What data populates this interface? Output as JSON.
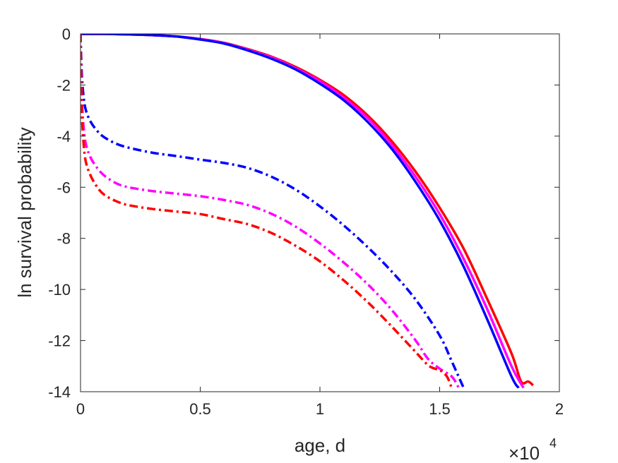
{
  "chart_data": {
    "type": "line",
    "xlabel": "age, d",
    "ylabel": "ln survival probability",
    "x_multiplier": {
      "base": "×10",
      "exponent": "4"
    },
    "xlim": [
      0,
      2
    ],
    "ylim": [
      -14,
      0
    ],
    "xticks": [
      "0",
      "0.5",
      "1",
      "1.5",
      "2"
    ],
    "yticks": [
      "0",
      "-2",
      "-4",
      "-6",
      "-8",
      "-10",
      "-12",
      "-14"
    ],
    "grid": false,
    "series": [
      {
        "style": "solid",
        "color": "#ff0000",
        "x": [
          0,
          0.1,
          0.2,
          0.3,
          0.4,
          0.5,
          0.6,
          0.7,
          0.8,
          0.9,
          1.0,
          1.1,
          1.2,
          1.3,
          1.4,
          1.5,
          1.6,
          1.7,
          1.8,
          1.84,
          1.87,
          1.89
        ],
        "y": [
          0,
          0,
          -0.02,
          -0.05,
          -0.1,
          -0.2,
          -0.35,
          -0.6,
          -0.9,
          -1.3,
          -1.8,
          -2.4,
          -3.2,
          -4.2,
          -5.4,
          -6.8,
          -8.4,
          -10.4,
          -12.5,
          -13.6,
          -13.6,
          -13.75
        ]
      },
      {
        "style": "solid",
        "color": "#ff00ff",
        "x": [
          0,
          0.1,
          0.2,
          0.3,
          0.4,
          0.5,
          0.6,
          0.7,
          0.8,
          0.9,
          1.0,
          1.1,
          1.2,
          1.3,
          1.4,
          1.5,
          1.6,
          1.7,
          1.8,
          1.85
        ],
        "y": [
          0,
          0,
          -0.02,
          -0.05,
          -0.1,
          -0.2,
          -0.36,
          -0.62,
          -0.93,
          -1.35,
          -1.85,
          -2.5,
          -3.3,
          -4.35,
          -5.6,
          -7.05,
          -8.8,
          -10.8,
          -13.0,
          -13.85
        ]
      },
      {
        "style": "solid",
        "color": "#0000ff",
        "x": [
          0,
          0.1,
          0.2,
          0.3,
          0.4,
          0.5,
          0.6,
          0.7,
          0.8,
          0.9,
          1.0,
          1.1,
          1.2,
          1.3,
          1.4,
          1.5,
          1.6,
          1.7,
          1.8,
          1.83
        ],
        "y": [
          0,
          0,
          -0.02,
          -0.05,
          -0.1,
          -0.22,
          -0.38,
          -0.65,
          -0.98,
          -1.4,
          -1.95,
          -2.6,
          -3.45,
          -4.5,
          -5.8,
          -7.3,
          -9.1,
          -11.2,
          -13.4,
          -13.85
        ]
      },
      {
        "style": "dashdot",
        "color": "#0000ff",
        "x": [
          0,
          0.005,
          0.01,
          0.02,
          0.04,
          0.07,
          0.1,
          0.15,
          0.2,
          0.3,
          0.4,
          0.5,
          0.6,
          0.7,
          0.8,
          0.9,
          1.0,
          1.1,
          1.2,
          1.3,
          1.4,
          1.5,
          1.55,
          1.6
        ],
        "y": [
          0,
          -1.5,
          -2.2,
          -2.9,
          -3.4,
          -3.8,
          -4.05,
          -4.3,
          -4.45,
          -4.65,
          -4.78,
          -4.92,
          -5.05,
          -5.25,
          -5.6,
          -6.1,
          -6.75,
          -7.5,
          -8.35,
          -9.3,
          -10.4,
          -11.8,
          -12.8,
          -13.85
        ]
      },
      {
        "style": "dashdot",
        "color": "#ff00ff",
        "x": [
          0,
          0.005,
          0.01,
          0.02,
          0.04,
          0.07,
          0.1,
          0.15,
          0.2,
          0.3,
          0.4,
          0.5,
          0.6,
          0.7,
          0.8,
          0.9,
          1.0,
          1.1,
          1.2,
          1.3,
          1.4,
          1.45,
          1.5,
          1.55,
          1.58
        ],
        "y": [
          0,
          -2.3,
          -3.3,
          -4.2,
          -4.8,
          -5.25,
          -5.55,
          -5.85,
          -6.0,
          -6.15,
          -6.25,
          -6.35,
          -6.5,
          -6.7,
          -7.05,
          -7.55,
          -8.2,
          -8.95,
          -9.8,
          -10.8,
          -12.0,
          -12.7,
          -13.1,
          -13.4,
          -13.85
        ]
      },
      {
        "style": "dashdot",
        "color": "#ff0000",
        "x": [
          0,
          0.005,
          0.01,
          0.02,
          0.04,
          0.07,
          0.1,
          0.15,
          0.2,
          0.3,
          0.4,
          0.5,
          0.6,
          0.7,
          0.8,
          0.9,
          1.0,
          1.1,
          1.2,
          1.3,
          1.4,
          1.45,
          1.48,
          1.5,
          1.53,
          1.55
        ],
        "y": [
          0,
          -2.8,
          -3.9,
          -4.9,
          -5.5,
          -6.0,
          -6.3,
          -6.55,
          -6.7,
          -6.85,
          -6.95,
          -7.05,
          -7.25,
          -7.45,
          -7.8,
          -8.3,
          -8.9,
          -9.65,
          -10.5,
          -11.45,
          -12.45,
          -12.95,
          -13.1,
          -13.15,
          -13.4,
          -13.85
        ]
      }
    ]
  }
}
